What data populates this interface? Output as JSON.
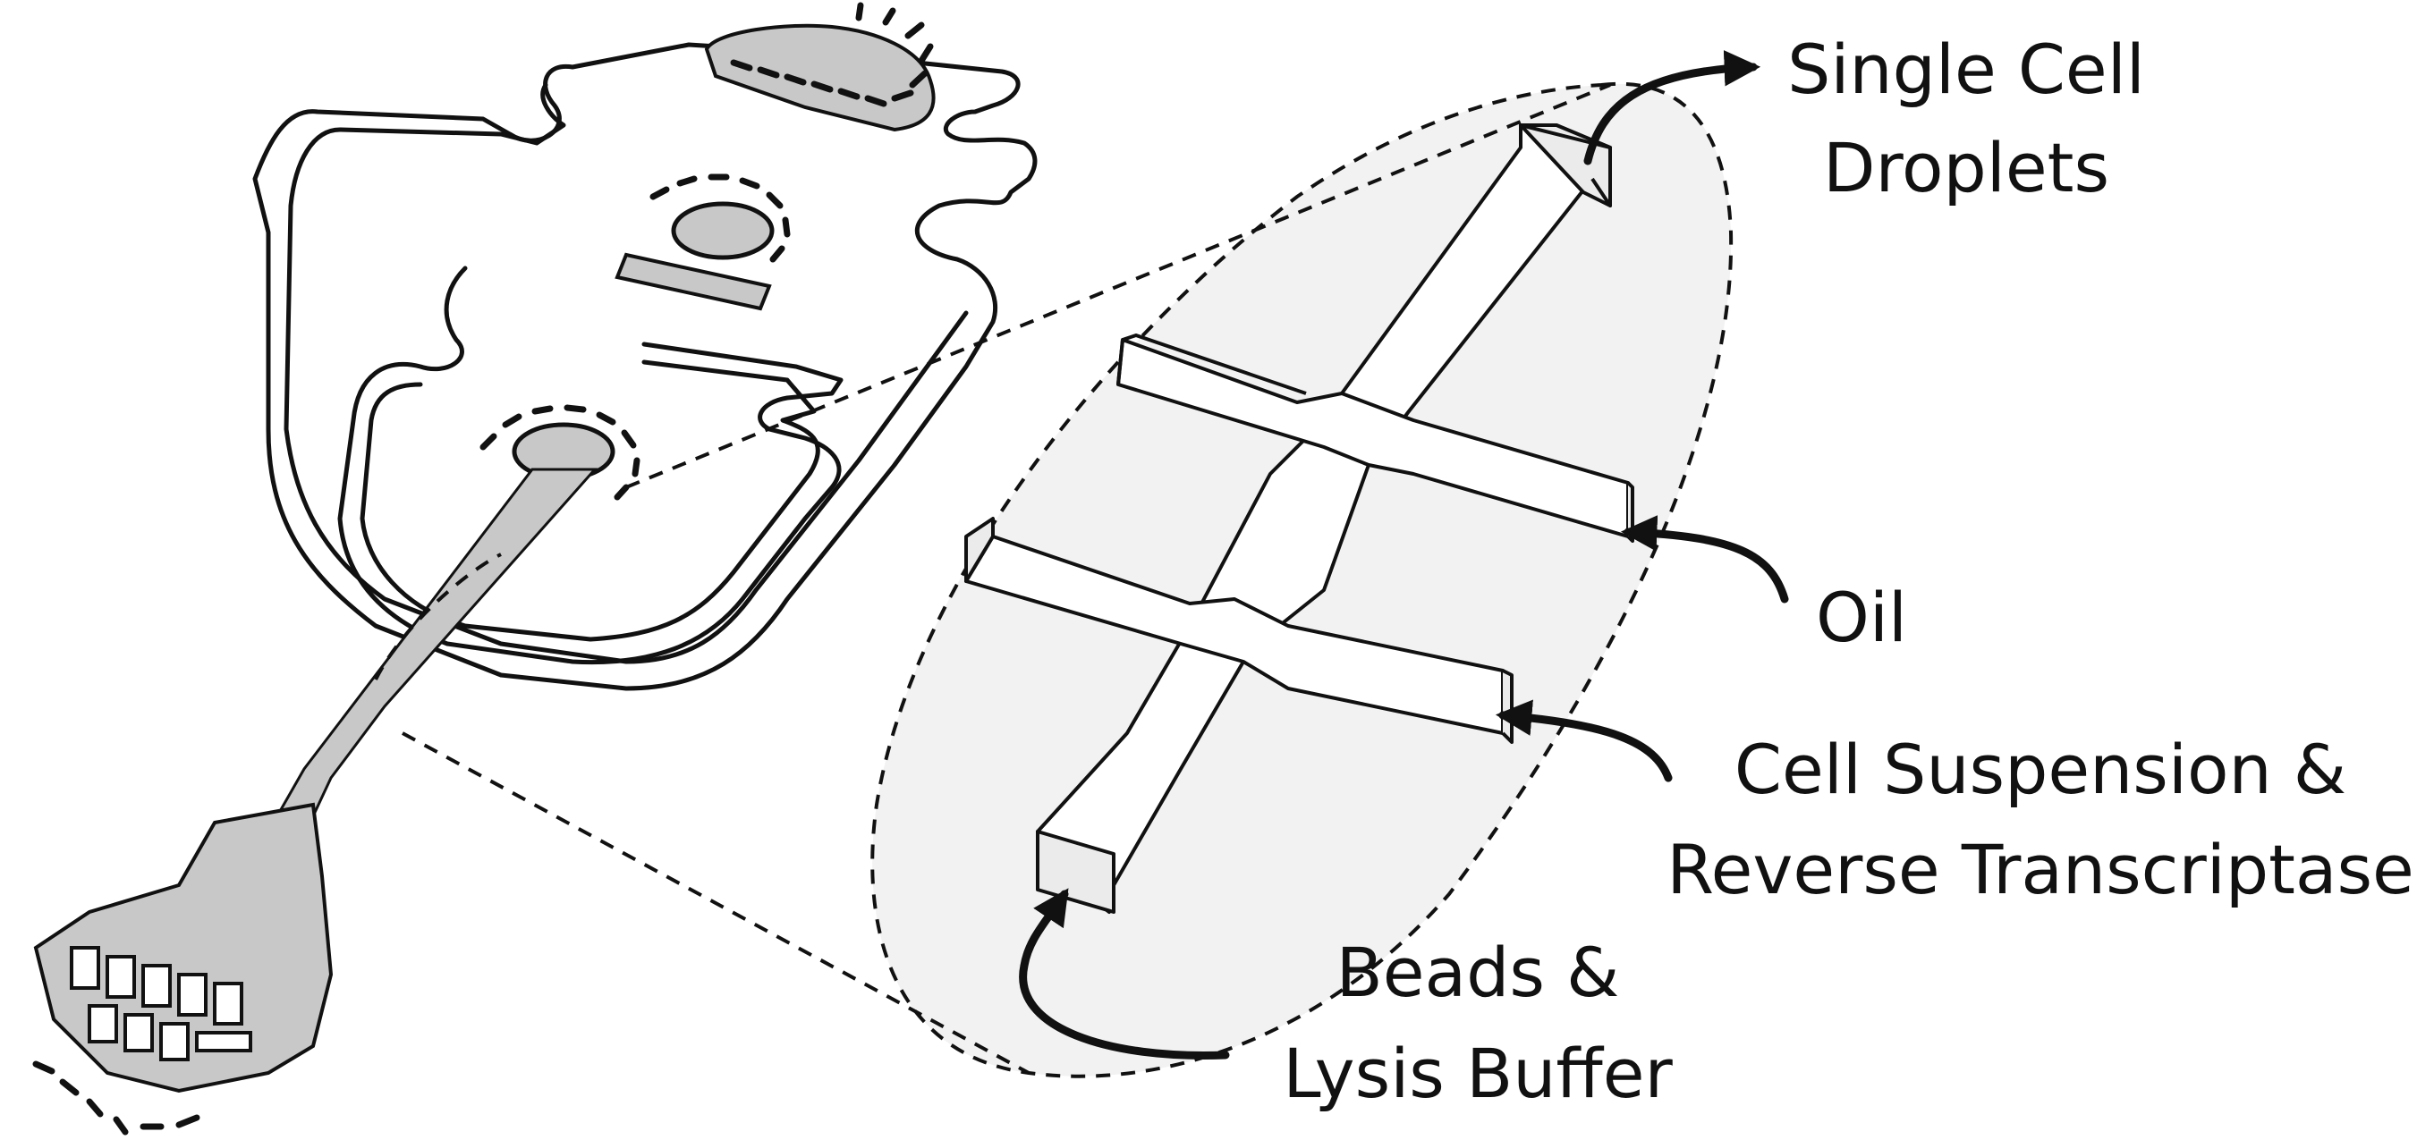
{
  "labels": {
    "single_cell": "Single Cell",
    "droplets": "Droplets",
    "oil": "Oil",
    "cell_suspension": "Cell Suspension &",
    "reverse_transcriptase": "Reverse Transcriptase",
    "beads": "Beads &",
    "lysis_buffer": "Lysis Buffer"
  },
  "colors": {
    "line": "#111111",
    "channel_fill": "#ffffff",
    "zoom_region": "#f2f2f2",
    "port_fill": "#c8c8c8",
    "channel_face": "#ebebeb"
  }
}
